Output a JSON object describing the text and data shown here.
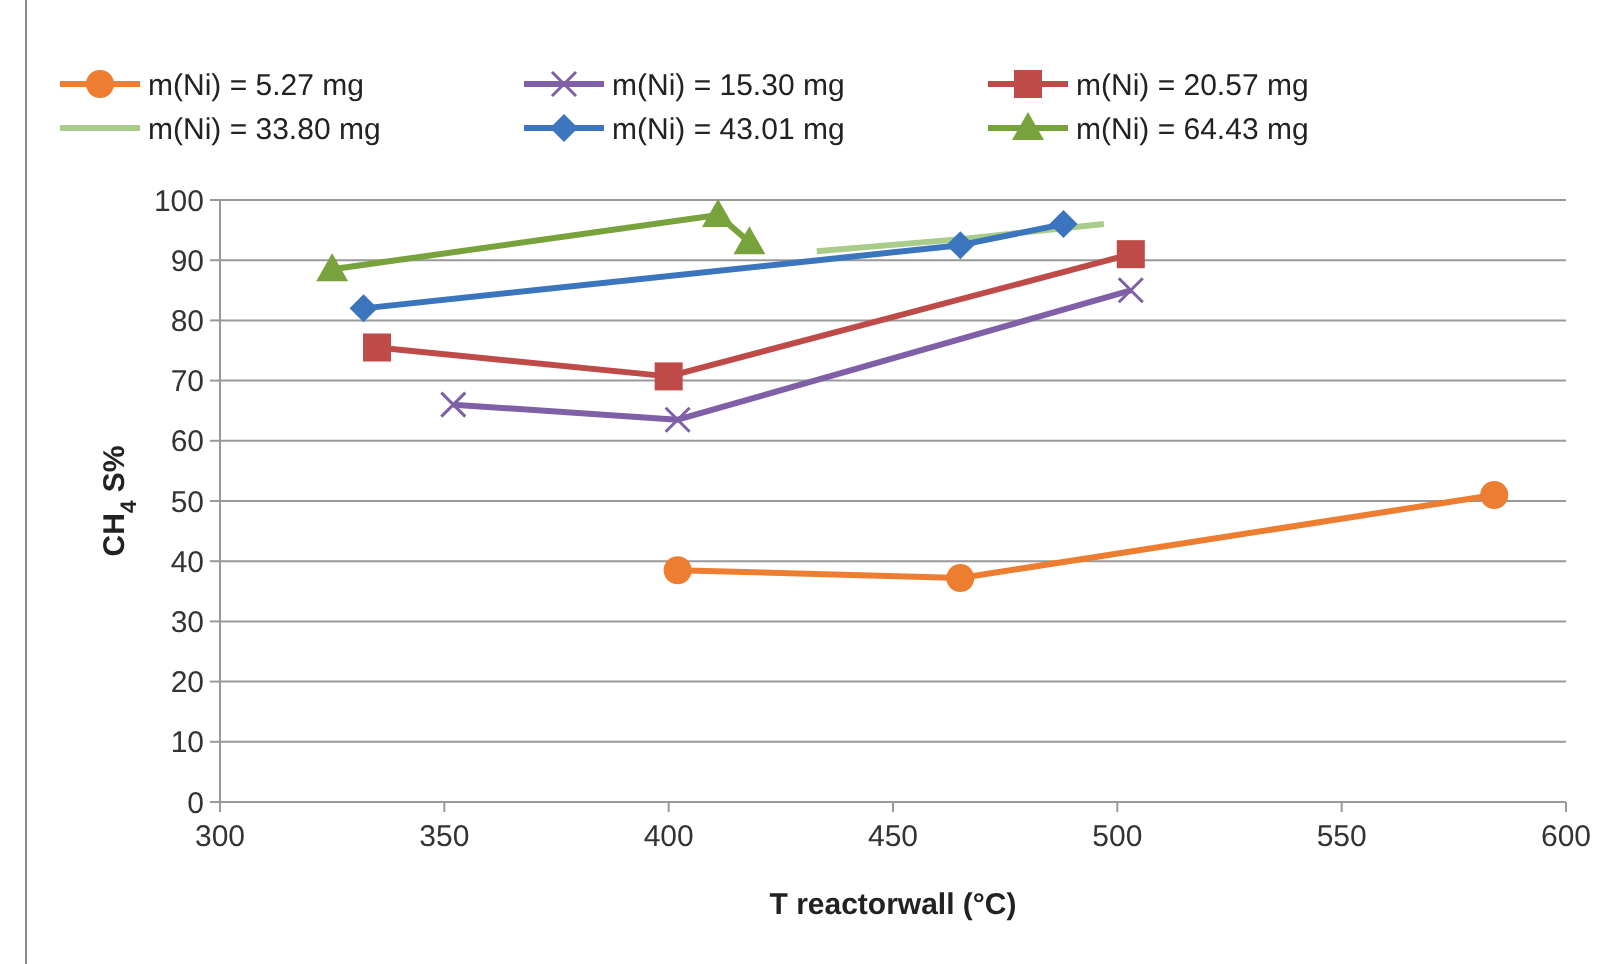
{
  "chart_data": {
    "type": "line",
    "xlabel": "T reactorwall (°C)",
    "ylabel": "CH$_{4}$ S%",
    "xlim": [
      300,
      600
    ],
    "xticks": [
      300,
      350,
      400,
      450,
      500,
      550,
      600
    ],
    "ylim": [
      0,
      100
    ],
    "yticks": [
      0,
      10,
      20,
      30,
      40,
      50,
      60,
      70,
      80,
      90,
      100
    ],
    "grid": "y",
    "legend": "top",
    "series": [
      {
        "name": "m(Ni) = 5.27 mg",
        "color": "#ed7d31",
        "marker": "circle",
        "x": [
          402,
          465,
          584
        ],
        "values": [
          38.5,
          37.2,
          51
        ]
      },
      {
        "name": "m(Ni) = 15.30 mg",
        "color": "#7f5fa6",
        "marker": "cross",
        "x": [
          352,
          402,
          503
        ],
        "values": [
          66,
          63.5,
          85
        ]
      },
      {
        "name": "m(Ni) = 20.57 mg",
        "color": "#be4b48",
        "marker": "square",
        "x": [
          335,
          400,
          503
        ],
        "values": [
          75.5,
          70.7,
          91
        ]
      },
      {
        "name": "m(Ni) = 33.80 mg",
        "color": "#a9cc8a",
        "marker": "none",
        "x": [
          433,
          465,
          497
        ],
        "values": [
          91.5,
          93.5,
          96
        ]
      },
      {
        "name": "m(Ni) = 43.01 mg",
        "color": "#3a75bd",
        "marker": "diamond",
        "x": [
          332,
          465,
          488
        ],
        "values": [
          82,
          92.5,
          96
        ]
      },
      {
        "name": "m(Ni) = 64.43 mg",
        "color": "#77a23c",
        "marker": "triangle",
        "x": [
          325,
          411,
          418
        ],
        "values": [
          88.5,
          97.5,
          93
        ]
      }
    ]
  }
}
